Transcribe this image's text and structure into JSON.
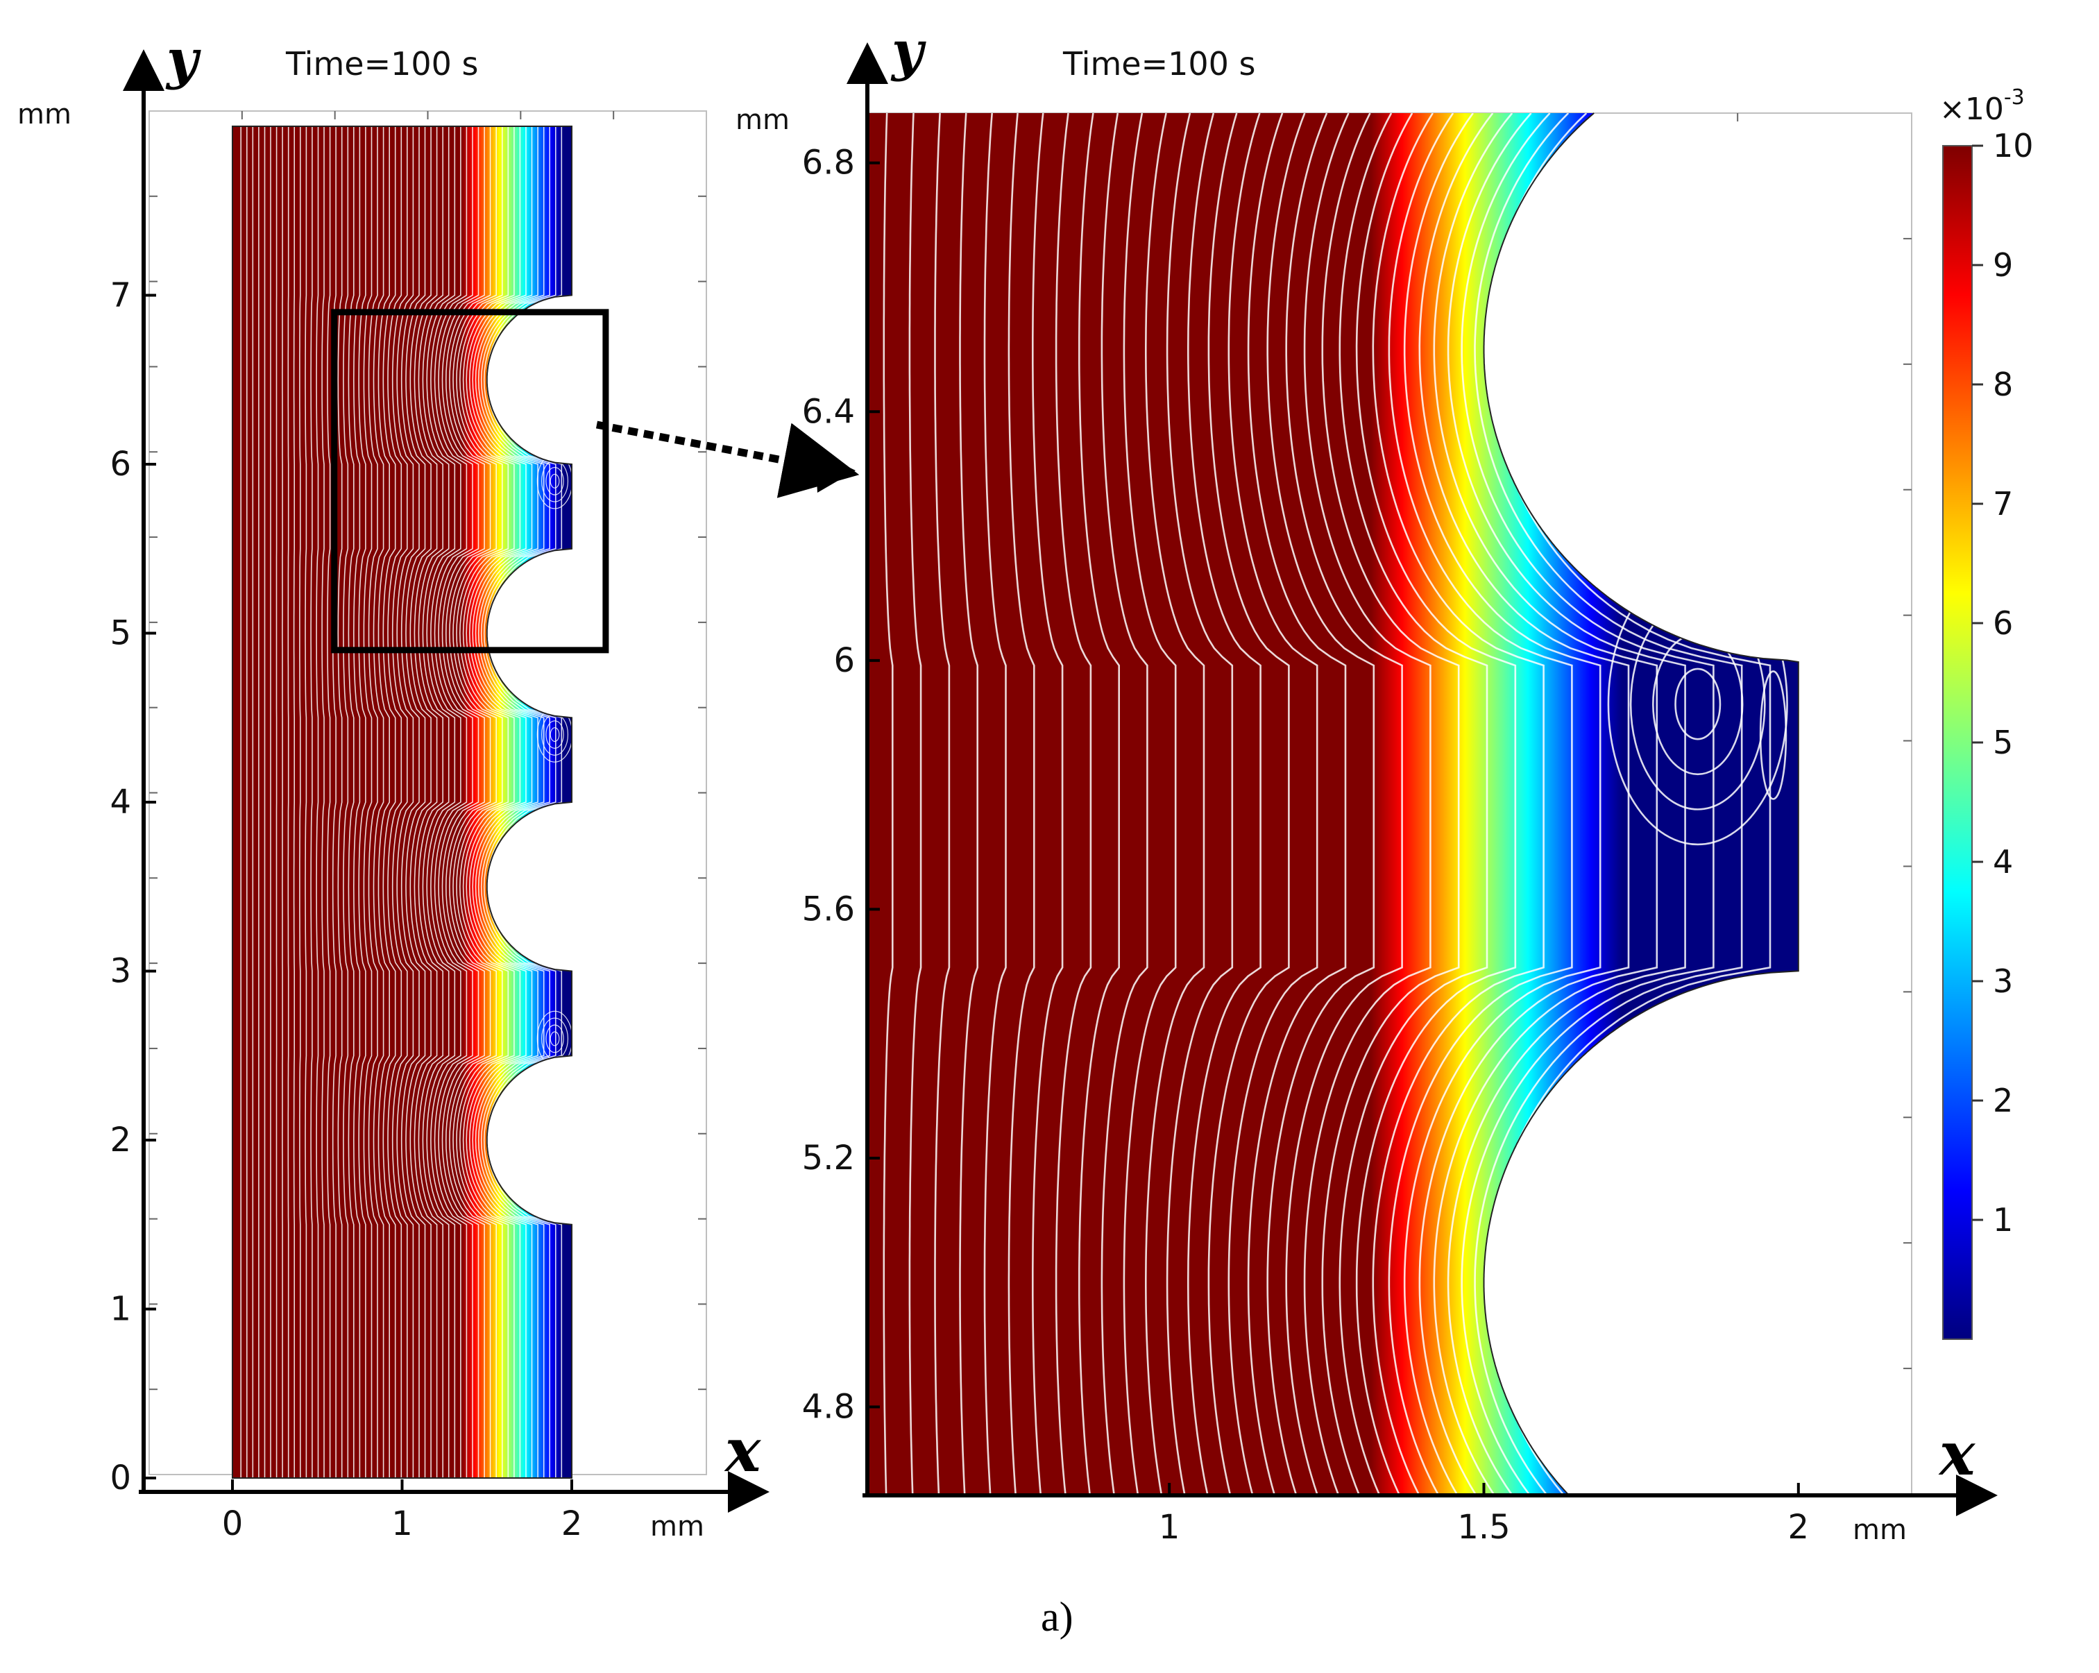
{
  "left_panel": {
    "title": "Time=100 s",
    "x_axis_var": "x",
    "y_axis_var": "y",
    "x_unit": "mm",
    "y_unit": "mm",
    "x_ticks": [
      "0",
      "1",
      "2"
    ],
    "y_ticks": [
      "0",
      "1",
      "2",
      "3",
      "4",
      "5",
      "6",
      "7"
    ],
    "xlim": [
      -0.5,
      2.85
    ],
    "ylim": [
      -0.1,
      8.05
    ],
    "domain": {
      "x": [
        0,
        2
      ],
      "y": [
        0,
        8
      ]
    },
    "cavities_y": [
      [
        1.5,
        3.0
      ],
      [
        4.5,
        6.0
      ]
    ],
    "semicircle_centers_y": [
      2.0,
      3.5,
      5.0,
      6.5
    ],
    "semicircle_radius": 0.5,
    "zoom_box": {
      "x": [
        0.6,
        2.2
      ],
      "y": [
        4.9,
        6.9
      ]
    }
  },
  "right_panel": {
    "title": "Time=100 s",
    "x_axis_var": "x",
    "y_axis_var": "y",
    "x_unit": "mm",
    "y_unit": "mm",
    "x_ticks": [
      "1",
      "1.5",
      "2"
    ],
    "y_ticks": [
      "4.8",
      "5.2",
      "5.6",
      "6",
      "6.4",
      "6.8"
    ],
    "xlim": [
      0.52,
      2.18
    ],
    "ylim": [
      4.66,
      6.88
    ]
  },
  "colorbar": {
    "multiplier": "×10",
    "exponent": "-3",
    "ticks": [
      "1",
      "2",
      "3",
      "4",
      "5",
      "6",
      "7",
      "8",
      "9",
      "10"
    ],
    "range": [
      0,
      10
    ],
    "colors": [
      "#00007f",
      "#0000ff",
      "#007fff",
      "#00ffff",
      "#7fff7f",
      "#ffff00",
      "#ff7f00",
      "#ff0000",
      "#7f0000"
    ]
  },
  "caption": "a)"
}
